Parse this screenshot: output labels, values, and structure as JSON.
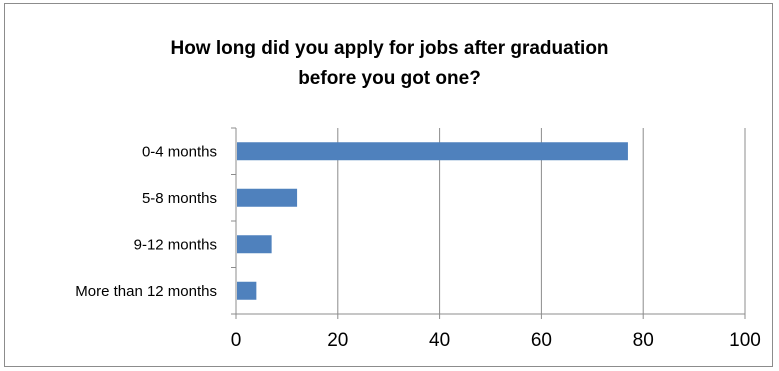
{
  "chart_data": {
    "type": "bar",
    "orientation": "horizontal",
    "title_lines": [
      "How long did you apply for jobs after graduation",
      "before you got one?"
    ],
    "categories": [
      "0-4 months",
      "5-8 months",
      "9-12 months",
      "More than 12 months"
    ],
    "values": [
      77,
      12,
      7,
      4
    ],
    "xlim": [
      0,
      100
    ],
    "xticks": [
      0,
      20,
      40,
      60,
      80,
      100
    ],
    "grid": true,
    "legend": "none",
    "bar_color": "#4f81bd"
  }
}
